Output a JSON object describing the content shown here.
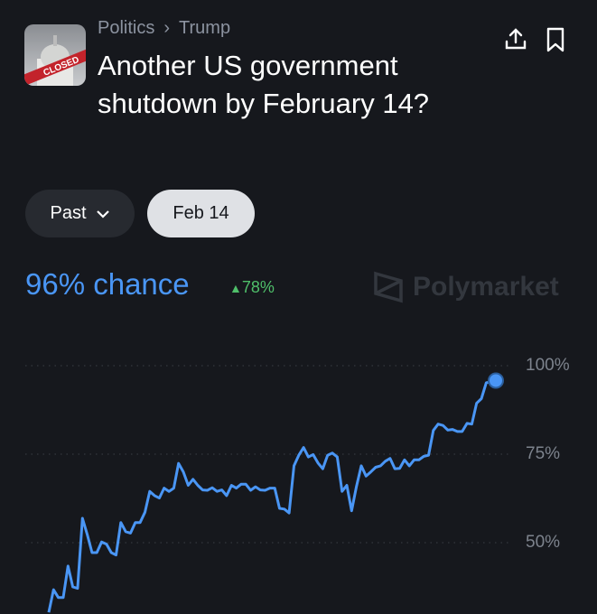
{
  "breadcrumb": {
    "category": "Politics",
    "subcategory": "Trump"
  },
  "title": "Another US government shutdown by February 14?",
  "filters": {
    "range": "Past",
    "date": "Feb 14"
  },
  "chance": {
    "label": "96% chance",
    "change": "78%",
    "change_direction": "up"
  },
  "watermark": "Polymarket",
  "thumbnail_text": "CLOSED",
  "colors": {
    "accent": "#4a96f5",
    "positive": "#4fbf6a",
    "background": "#16181d"
  },
  "chart_data": {
    "type": "line",
    "ylim": [
      29,
      100
    ],
    "yticks": [
      "100%",
      "75%",
      "50%"
    ],
    "ytick_values": [
      100,
      75,
      50
    ],
    "grid": true,
    "values": [
      30.3,
      36.7,
      34.5,
      34.5,
      43.4,
      37.5,
      37.1,
      56.9,
      52.3,
      47.2,
      47.2,
      50.2,
      49.6,
      47.2,
      46.5,
      55.7,
      53.1,
      52.7,
      55.7,
      55.7,
      58.6,
      64.5,
      63.3,
      62.6,
      65.4,
      64.5,
      65.4,
      72.4,
      70.0,
      66.2,
      67.9,
      66.2,
      64.9,
      64.8,
      65.5,
      64.5,
      64.9,
      63.3,
      66.2,
      65.4,
      66.5,
      66.5,
      64.8,
      65.8,
      64.9,
      64.8,
      65.4,
      65.4,
      59.7,
      59.5,
      58.4,
      71.7,
      74.7,
      76.9,
      74.2,
      74.9,
      72.5,
      70.9,
      74.7,
      75.3,
      74.2,
      64.5,
      66.2,
      59.0,
      65.8,
      71.7,
      68.8,
      70.0,
      71.3,
      71.7,
      73.0,
      73.8,
      70.9,
      71.0,
      73.4,
      71.7,
      73.4,
      73.4,
      74.4,
      74.7,
      81.7,
      83.5,
      83.1,
      81.8,
      82.0,
      81.4,
      81.4,
      83.7,
      83.5,
      89.4,
      90.7,
      95.2,
      95.4,
      95.8
    ]
  }
}
